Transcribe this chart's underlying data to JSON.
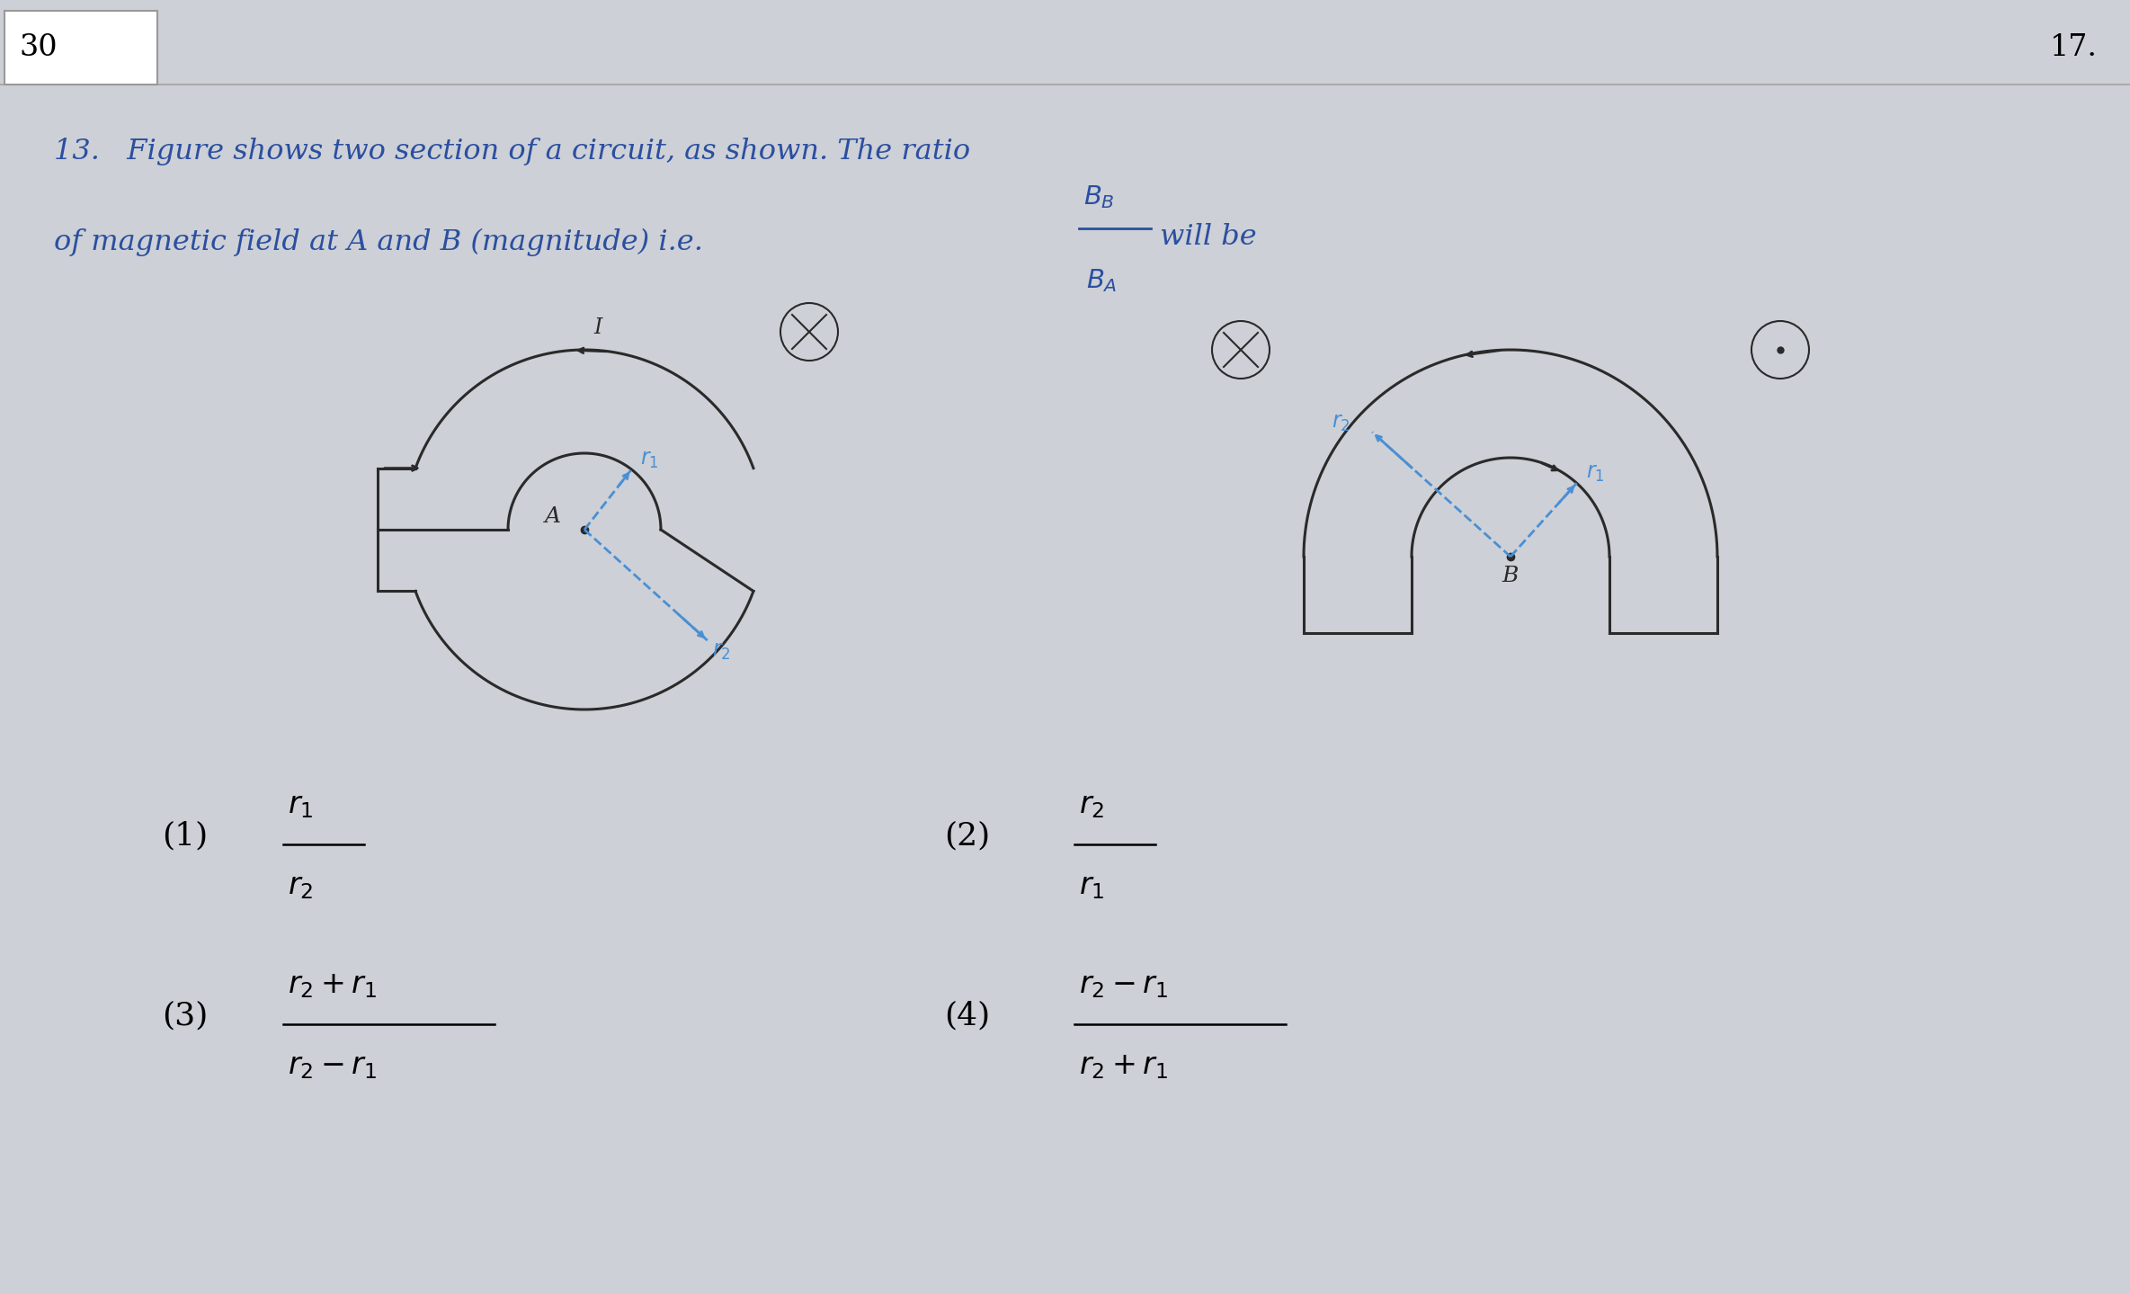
{
  "bg_color": "#cdd0d6",
  "text_color": "#2b4fa0",
  "circuit_color": "#2a2a2a",
  "dashed_color": "#4a8fd4",
  "number_30": "30",
  "number_17": "17.",
  "q13_line1": "13.   Figure shows two section of a circuit, as shown. The ratio",
  "q13_line2": "of magnetic field at A and B (magnitude) i.e.",
  "will_be": " will be",
  "opt1_num": "(1)",
  "opt2_num": "(2)",
  "opt3_num": "(3)",
  "opt4_num": "(4)"
}
